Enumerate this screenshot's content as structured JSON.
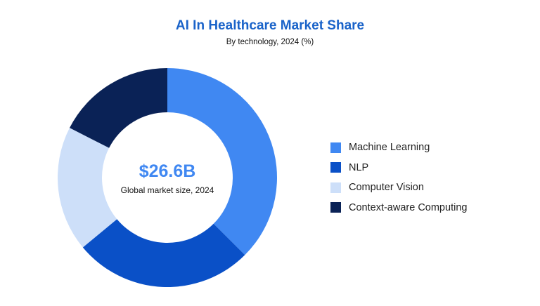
{
  "chart_data": {
    "type": "pie",
    "title": "AI In Healthcare Market Share",
    "subtitle": "By technology, 2024 (%)",
    "center_value": "$26.6B",
    "center_label": "Global market size, 2024",
    "slices": [
      {
        "name": "Machine Learning",
        "value": 37.5,
        "color": "#4088f2"
      },
      {
        "name": "NLP",
        "value": 26.5,
        "color": "#0a50c7"
      },
      {
        "name": "Computer Vision",
        "value": 18.5,
        "color": "#cddff9"
      },
      {
        "name": "Context-aware Computing",
        "value": 17.5,
        "color": "#0a2256"
      }
    ],
    "legend_position": "right"
  }
}
